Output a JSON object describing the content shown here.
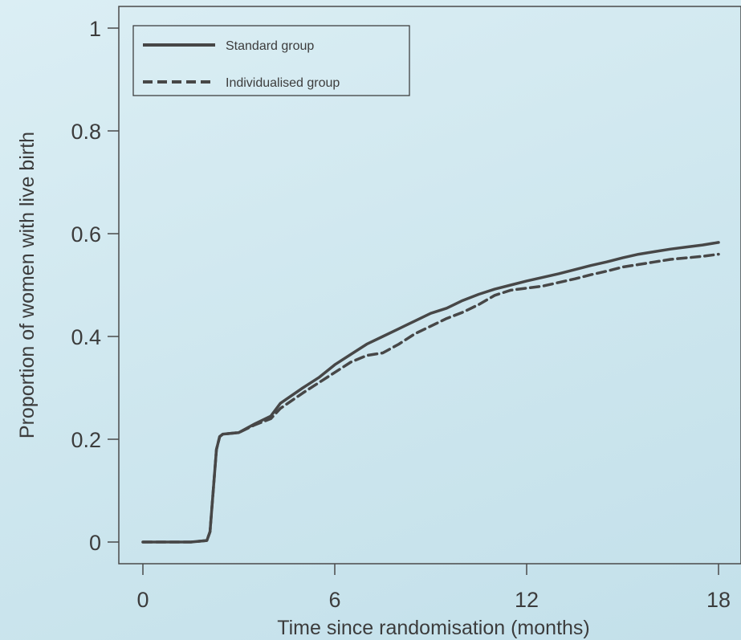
{
  "chart_data": {
    "type": "line",
    "title": "",
    "xlabel": "Time since randomisation (months)",
    "ylabel": "Proportion of women with live birth",
    "xlim": [
      0,
      18
    ],
    "ylim": [
      0,
      1
    ],
    "xticks": [
      0,
      6,
      12,
      18
    ],
    "xtick_labels": [
      "0",
      "6",
      "12",
      "18"
    ],
    "yticks": [
      0,
      0.2,
      0.4,
      0.6,
      0.8,
      1
    ],
    "ytick_labels": [
      "0",
      "0.2",
      "0.4",
      "0.6",
      "0.8",
      "1"
    ],
    "grid": false,
    "legend_position": "top-left",
    "series": [
      {
        "name": "Standard group",
        "style": "solid",
        "color": "#474747",
        "x": [
          0,
          1.5,
          2.0,
          2.1,
          2.2,
          2.3,
          2.4,
          2.5,
          3.0,
          3.5,
          4.0,
          4.3,
          5.0,
          5.5,
          6.0,
          6.5,
          7.0,
          7.5,
          8.0,
          8.5,
          9.0,
          9.5,
          10.0,
          10.5,
          11.0,
          11.5,
          12.0,
          12.5,
          13.0,
          13.5,
          14.0,
          14.5,
          15.0,
          15.5,
          16.0,
          16.5,
          17.0,
          17.5,
          18.0
        ],
        "y": [
          0,
          0,
          0.003,
          0.02,
          0.1,
          0.18,
          0.205,
          0.21,
          0.213,
          0.23,
          0.245,
          0.27,
          0.3,
          0.32,
          0.345,
          0.365,
          0.385,
          0.4,
          0.415,
          0.43,
          0.445,
          0.455,
          0.47,
          0.482,
          0.492,
          0.5,
          0.508,
          0.515,
          0.522,
          0.53,
          0.538,
          0.545,
          0.553,
          0.56,
          0.565,
          0.57,
          0.574,
          0.578,
          0.583
        ]
      },
      {
        "name": "Individualised group",
        "style": "dashed",
        "color": "#474747",
        "x": [
          0,
          1.5,
          2.0,
          2.1,
          2.2,
          2.3,
          2.4,
          2.5,
          3.0,
          3.5,
          4.0,
          4.3,
          5.0,
          5.5,
          6.0,
          6.5,
          7.0,
          7.5,
          8.0,
          8.5,
          9.0,
          9.5,
          10.0,
          10.5,
          11.0,
          11.5,
          12.0,
          12.5,
          13.0,
          13.5,
          14.0,
          14.5,
          15.0,
          15.5,
          16.0,
          16.5,
          17.0,
          17.5,
          18.0
        ],
        "y": [
          0,
          0,
          0.003,
          0.02,
          0.1,
          0.18,
          0.205,
          0.21,
          0.213,
          0.228,
          0.24,
          0.26,
          0.29,
          0.31,
          0.33,
          0.35,
          0.363,
          0.368,
          0.385,
          0.405,
          0.42,
          0.435,
          0.447,
          0.462,
          0.48,
          0.49,
          0.494,
          0.498,
          0.505,
          0.512,
          0.52,
          0.527,
          0.535,
          0.54,
          0.545,
          0.55,
          0.553,
          0.556,
          0.56
        ]
      }
    ]
  }
}
